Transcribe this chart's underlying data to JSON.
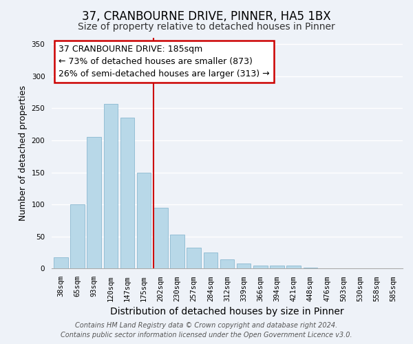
{
  "title": "37, CRANBOURNE DRIVE, PINNER, HA5 1BX",
  "subtitle": "Size of property relative to detached houses in Pinner",
  "xlabel": "Distribution of detached houses by size in Pinner",
  "ylabel": "Number of detached properties",
  "bar_labels": [
    "38sqm",
    "65sqm",
    "93sqm",
    "120sqm",
    "147sqm",
    "175sqm",
    "202sqm",
    "230sqm",
    "257sqm",
    "284sqm",
    "312sqm",
    "339sqm",
    "366sqm",
    "394sqm",
    "421sqm",
    "448sqm",
    "476sqm",
    "503sqm",
    "530sqm",
    "558sqm",
    "585sqm"
  ],
  "bar_values": [
    18,
    100,
    205,
    257,
    235,
    150,
    95,
    53,
    33,
    25,
    14,
    8,
    5,
    5,
    5,
    2,
    1,
    1,
    1,
    0,
    0
  ],
  "bar_color": "#b8d8e8",
  "bar_edge_color": "#8ab8d0",
  "vline_x_idx": 6,
  "vline_color": "#cc0000",
  "ylim": [
    0,
    360
  ],
  "yticks": [
    0,
    50,
    100,
    150,
    200,
    250,
    300,
    350
  ],
  "annotation_title": "37 CRANBOURNE DRIVE: 185sqm",
  "annotation_line1": "← 73% of detached houses are smaller (873)",
  "annotation_line2": "26% of semi-detached houses are larger (313) →",
  "annotation_box_facecolor": "#ffffff",
  "annotation_box_edgecolor": "#cc0000",
  "footer1": "Contains HM Land Registry data © Crown copyright and database right 2024.",
  "footer2": "Contains public sector information licensed under the Open Government Licence v3.0.",
  "bg_color": "#eef2f8",
  "title_fontsize": 12,
  "subtitle_fontsize": 10,
  "xlabel_fontsize": 10,
  "ylabel_fontsize": 9,
  "tick_fontsize": 7.5,
  "footer_fontsize": 7,
  "annot_fontsize": 9
}
